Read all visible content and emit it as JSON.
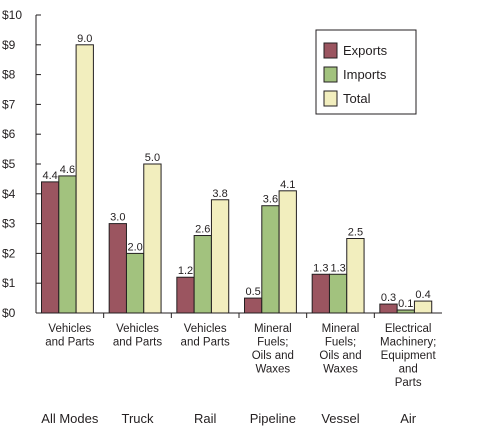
{
  "chart_data": {
    "type": "bar",
    "y_tick_labels": [
      "$0",
      "$1",
      "$2",
      "$3",
      "$4",
      "$5",
      "$6",
      "$7",
      "$8",
      "$9",
      "$10"
    ],
    "ylim": [
      0,
      10
    ],
    "grid": false,
    "legend_position": "top-right",
    "categories": [
      {
        "group": "All Modes",
        "label": [
          "Vehicles",
          "and Parts"
        ]
      },
      {
        "group": "Truck",
        "label": [
          "Vehicles",
          "and Parts"
        ]
      },
      {
        "group": "Rail",
        "label": [
          "Vehicles",
          "and Parts"
        ]
      },
      {
        "group": "Pipeline",
        "label": [
          "Mineral",
          "Fuels;",
          "Oils and",
          "Waxes"
        ]
      },
      {
        "group": "Vessel",
        "label": [
          "Mineral",
          "Fuels;",
          "Oils and",
          "Waxes"
        ]
      },
      {
        "group": "Air",
        "label": [
          "Electrical",
          "Machinery;",
          "Equipment",
          "and",
          "Parts"
        ]
      }
    ],
    "series": [
      {
        "name": "Exports",
        "color": "#9b5560",
        "values": [
          4.4,
          3.0,
          1.2,
          0.5,
          1.3,
          0.3
        ],
        "labels": [
          "4.4",
          "3.0",
          "1.2",
          "0.5",
          "1.3",
          "0.3"
        ]
      },
      {
        "name": "Imports",
        "color": "#a2c27e",
        "values": [
          4.6,
          2.0,
          2.6,
          3.6,
          1.3,
          0.1
        ],
        "labels": [
          "4.6",
          "2.0",
          "2.6",
          "3.6",
          "1.3",
          "0.1"
        ]
      },
      {
        "name": "Total",
        "color": "#f2eebe",
        "values": [
          9.0,
          5.0,
          3.8,
          4.1,
          2.5,
          0.4
        ],
        "labels": [
          "9.0",
          "5.0",
          "3.8",
          "4.1",
          "2.5",
          "0.4"
        ]
      }
    ]
  }
}
